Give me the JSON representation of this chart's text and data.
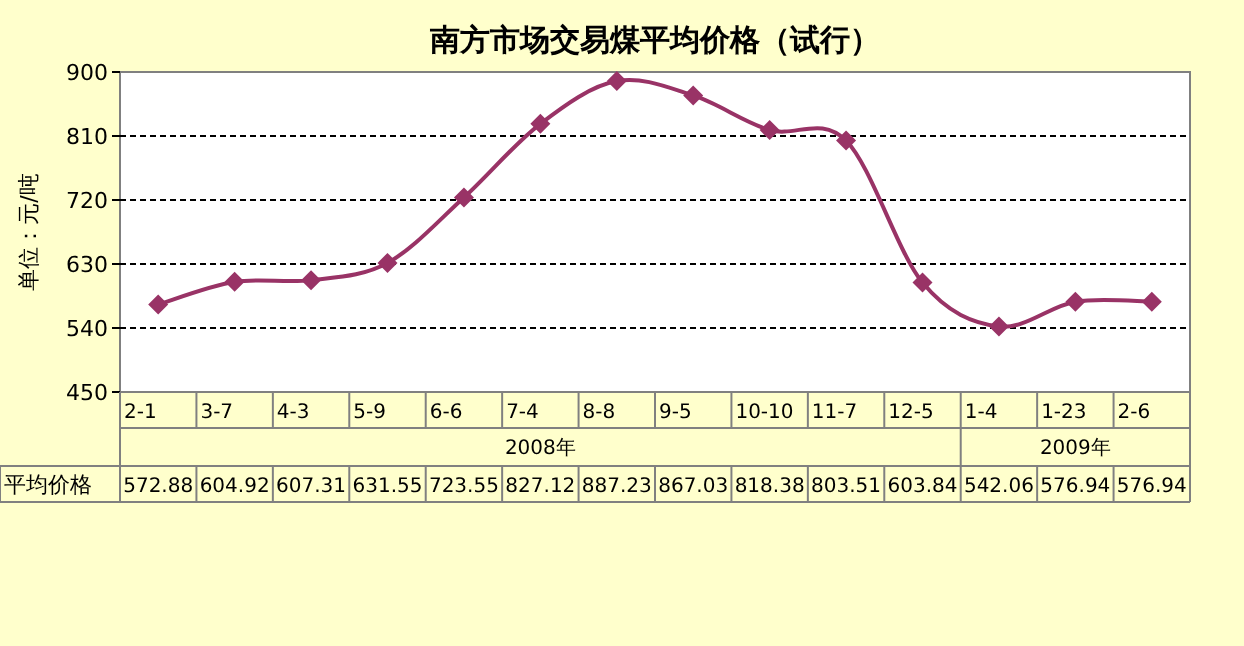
{
  "chart_data": {
    "type": "line",
    "title": "南方市场交易煤平均价格（试行）",
    "ylabel": "单位：元/吨",
    "categories": [
      "2-1",
      "3-7",
      "4-3",
      "5-9",
      "6-6",
      "7-4",
      "8-8",
      "9-5",
      "10-10",
      "11-7",
      "12-5",
      "1-4",
      "1-23",
      "2-6"
    ],
    "series": [
      {
        "name": "平均价格",
        "color": "#993366",
        "values": [
          572.88,
          604.92,
          607.31,
          631.55,
          723.55,
          827.12,
          887.23,
          867.03,
          818.38,
          803.51,
          603.84,
          542.06,
          576.94,
          576.94
        ]
      }
    ],
    "annotations": [
      "2008年",
      "2009年"
    ],
    "ylim": [
      450,
      900
    ],
    "yticks": [
      450,
      540,
      630,
      720,
      810,
      900
    ],
    "grid": "y",
    "marker": "diamond",
    "line_style": "solid",
    "data_labels": true
  }
}
